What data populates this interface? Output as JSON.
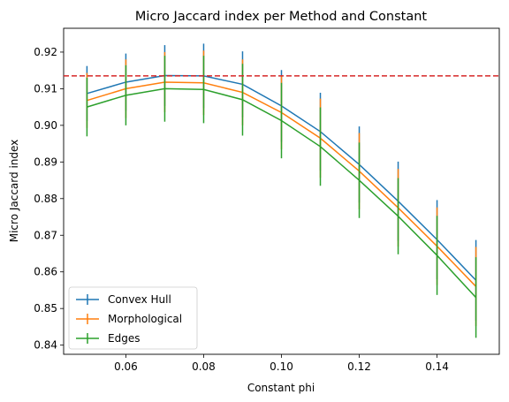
{
  "chart_data": {
    "type": "line",
    "title": "Micro Jaccard index per Method and Constant",
    "xlabel": "Constant phi",
    "ylabel": "Micro Jaccard index",
    "xlim": [
      0.044,
      0.156
    ],
    "ylim": [
      0.8375,
      0.9265
    ],
    "xticks": [
      0.06,
      0.08,
      0.1,
      0.12,
      0.14
    ],
    "xtick_labels": [
      "0.06",
      "0.08",
      "0.10",
      "0.12",
      "0.14"
    ],
    "yticks": [
      0.84,
      0.85,
      0.86,
      0.87,
      0.88,
      0.89,
      0.9,
      0.91,
      0.92
    ],
    "ytick_labels": [
      "0.84",
      "0.85",
      "0.86",
      "0.87",
      "0.88",
      "0.89",
      "0.90",
      "0.91",
      "0.92"
    ],
    "x": [
      0.05,
      0.06,
      0.07,
      0.08,
      0.09,
      0.1,
      0.11,
      0.12,
      0.13,
      0.14,
      0.15
    ],
    "reference_line": {
      "y": 0.9135,
      "color": "#d62728",
      "style": "dashed"
    },
    "legend_position": "lower-left",
    "grid": false,
    "series": [
      {
        "name": "Convex Hull",
        "color": "#1f77b4",
        "values": [
          0.9087,
          0.9118,
          0.9136,
          0.9135,
          0.9112,
          0.9053,
          0.8983,
          0.8893,
          0.8793,
          0.8688,
          0.8577
        ],
        "errors": [
          0.0075,
          0.0078,
          0.0083,
          0.0088,
          0.009,
          0.0098,
          0.0106,
          0.0104,
          0.0108,
          0.0108,
          0.011
        ]
      },
      {
        "name": "Morphological",
        "color": "#ff7f0e",
        "values": [
          0.9068,
          0.91,
          0.9118,
          0.9116,
          0.909,
          0.9035,
          0.8965,
          0.8875,
          0.8775,
          0.867,
          0.856
        ],
        "errors": [
          0.0075,
          0.008,
          0.0082,
          0.0088,
          0.009,
          0.01,
          0.0108,
          0.0104,
          0.0106,
          0.0106,
          0.0108
        ]
      },
      {
        "name": "Edges",
        "color": "#2ca02c",
        "values": [
          0.905,
          0.9082,
          0.91,
          0.9098,
          0.907,
          0.9013,
          0.8942,
          0.885,
          0.8752,
          0.8645,
          0.853
        ],
        "errors": [
          0.008,
          0.0082,
          0.009,
          0.0092,
          0.0098,
          0.0103,
          0.0107,
          0.0103,
          0.0104,
          0.0108,
          0.011
        ]
      }
    ]
  }
}
